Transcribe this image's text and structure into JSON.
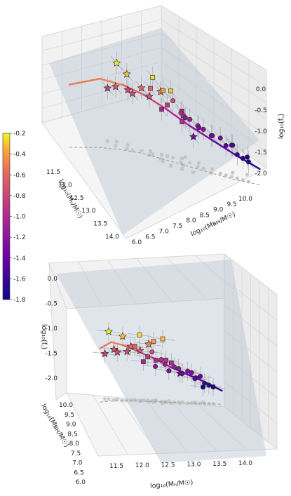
{
  "chart_data": [
    {
      "type": "scatter",
      "panel": "top",
      "projection": "3d",
      "x": {
        "label": "log₁₀(Mₕ/M☉)",
        "ticks": [
          "11.5",
          "12.0",
          "12.5",
          "13.0",
          "13.5",
          "14.0"
        ],
        "lim": [
          11.3,
          14.2
        ]
      },
      "y": {
        "label": "log₁₀(Mʙʜ/M☉)",
        "ticks": [
          "6.0",
          "6.5",
          "7.0",
          "7.5",
          "8.0",
          "8.5",
          "9.0",
          "9.5",
          "10.0"
        ],
        "lim": [
          5.9,
          10.1
        ]
      },
      "z": {
        "label": "log₁₀(f꜀)",
        "ticks": [
          "-2.0",
          "-1.5",
          "-1.0",
          "-0.5",
          "0.0"
        ],
        "lim": [
          -2.2,
          0.3
        ]
      },
      "grid": true,
      "markers": [
        "star",
        "square",
        "circle"
      ],
      "colorbar": {
        "min": -1.8,
        "max": -0.2,
        "ticks": [
          "-0.2",
          "-0.4",
          "-0.6",
          "-0.8",
          "-1.0",
          "-1.2",
          "-1.4",
          "-1.6",
          "-1.8"
        ],
        "colormap": "plasma"
      },
      "points": [
        {
          "m": "star",
          "x": 11.6,
          "y": 7.4,
          "z": -0.2
        },
        {
          "m": "star",
          "x": 11.9,
          "y": 7.5,
          "z": -0.3
        },
        {
          "m": "star",
          "x": 11.7,
          "y": 7.3,
          "z": -0.7
        },
        {
          "m": "star",
          "x": 11.8,
          "y": 7.6,
          "z": -0.8
        },
        {
          "m": "star",
          "x": 12.0,
          "y": 7.6,
          "z": -0.75
        },
        {
          "m": "star",
          "x": 12.1,
          "y": 7.8,
          "z": -0.6
        },
        {
          "m": "star",
          "x": 12.3,
          "y": 7.9,
          "z": -0.7
        },
        {
          "m": "star",
          "x": 11.5,
          "y": 7.2,
          "z": -0.85
        },
        {
          "m": "star",
          "x": 12.5,
          "y": 8.1,
          "z": -0.5
        },
        {
          "m": "star",
          "x": 13.2,
          "y": 8.6,
          "z": -1.3
        },
        {
          "m": "square",
          "x": 12.3,
          "y": 8.0,
          "z": -0.25
        },
        {
          "m": "square",
          "x": 12.8,
          "y": 8.2,
          "z": -0.3
        },
        {
          "m": "square",
          "x": 12.6,
          "y": 8.1,
          "z": -0.4
        },
        {
          "m": "square",
          "x": 12.2,
          "y": 8.0,
          "z": -0.6
        },
        {
          "m": "square",
          "x": 12.5,
          "y": 8.3,
          "z": -0.9
        },
        {
          "m": "square",
          "x": 12.9,
          "y": 8.5,
          "z": -0.95
        },
        {
          "m": "square",
          "x": 13.0,
          "y": 8.4,
          "z": -1.0
        },
        {
          "m": "square",
          "x": 12.4,
          "y": 8.2,
          "z": -1.05
        },
        {
          "m": "square",
          "x": 12.7,
          "y": 8.6,
          "z": -1.0
        },
        {
          "m": "circle",
          "x": 12.6,
          "y": 8.4,
          "z": -0.75
        },
        {
          "m": "circle",
          "x": 12.8,
          "y": 8.5,
          "z": -0.95
        },
        {
          "m": "circle",
          "x": 12.9,
          "y": 8.7,
          "z": -1.1
        },
        {
          "m": "circle",
          "x": 13.1,
          "y": 8.8,
          "z": -1.15
        },
        {
          "m": "circle",
          "x": 13.2,
          "y": 8.9,
          "z": -1.2
        },
        {
          "m": "circle",
          "x": 13.4,
          "y": 9.0,
          "z": -1.25
        },
        {
          "m": "circle",
          "x": 13.3,
          "y": 9.1,
          "z": -1.35
        },
        {
          "m": "circle",
          "x": 13.5,
          "y": 9.2,
          "z": -1.3
        },
        {
          "m": "circle",
          "x": 13.6,
          "y": 9.3,
          "z": -1.45
        },
        {
          "m": "circle",
          "x": 13.7,
          "y": 9.4,
          "z": -1.4
        },
        {
          "m": "circle",
          "x": 13.8,
          "y": 9.5,
          "z": -1.6
        },
        {
          "m": "circle",
          "x": 13.9,
          "y": 9.6,
          "z": -1.65
        },
        {
          "m": "circle",
          "x": 14.0,
          "y": 9.7,
          "z": -1.7
        },
        {
          "m": "circle",
          "x": 13.6,
          "y": 9.5,
          "z": -1.5
        },
        {
          "m": "circle",
          "x": 13.0,
          "y": 8.9,
          "z": -1.3
        },
        {
          "m": "circle",
          "x": 12.7,
          "y": 8.7,
          "z": -1.2
        },
        {
          "m": "circle",
          "x": 13.8,
          "y": 9.8,
          "z": -1.75
        }
      ],
      "fit_curve": [
        {
          "x": 11.3,
          "y": 6.2,
          "z": -0.6
        },
        {
          "x": 11.6,
          "y": 6.9,
          "z": -0.45
        },
        {
          "x": 11.9,
          "y": 7.4,
          "z": -0.55
        },
        {
          "x": 12.2,
          "y": 7.8,
          "z": -0.7
        },
        {
          "x": 12.6,
          "y": 8.2,
          "z": -0.9
        },
        {
          "x": 13.0,
          "y": 8.6,
          "z": -1.15
        },
        {
          "x": 13.4,
          "y": 9.0,
          "z": -1.35
        },
        {
          "x": 13.8,
          "y": 9.4,
          "z": -1.55
        },
        {
          "x": 14.2,
          "y": 9.9,
          "z": -1.8
        }
      ]
    },
    {
      "type": "scatter",
      "panel": "bottom",
      "projection": "3d",
      "x": {
        "label": "log₁₀(Mₕ/M☉)",
        "ticks": [
          "11.5",
          "12.0",
          "12.5",
          "13.0",
          "13.5",
          "14.0"
        ],
        "lim": [
          11.3,
          14.2
        ]
      },
      "y": {
        "label": "log₁₀(Mʙʜ/M☉)",
        "ticks": [
          "6.0",
          "6.5",
          "7.0",
          "7.5",
          "8.0",
          "8.5",
          "9.0",
          "9.5",
          "10.0"
        ],
        "lim": [
          5.9,
          10.1
        ]
      },
      "z": {
        "label": "log₁₀(f꜀)",
        "ticks": [
          "0.0",
          "-0.5",
          "-1.0",
          "-1.5",
          "-2.0"
        ],
        "lim": [
          -2.2,
          0.3
        ]
      },
      "grid": true
    }
  ]
}
